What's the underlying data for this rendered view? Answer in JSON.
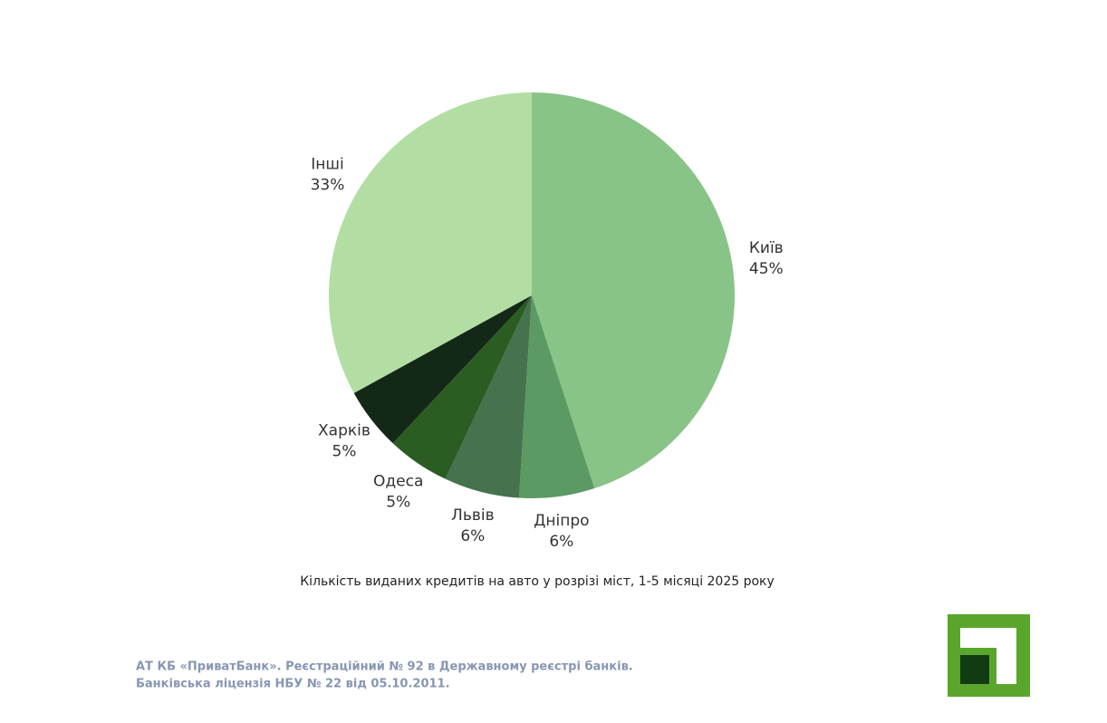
{
  "chart_data": {
    "type": "pie",
    "caption": "Кількість виданих кредитів на авто у розрізі міст,  1-5 місяці 2025 року",
    "categories": [
      "Київ",
      "Дніпро",
      "Львів",
      "Одеса",
      "Харків",
      "Інші"
    ],
    "values": [
      45,
      6,
      6,
      5,
      5,
      33
    ],
    "value_labels": [
      "45%",
      "6%",
      "6%",
      "5%",
      "5%",
      "33%"
    ],
    "colors": [
      "#88c487",
      "#5b9a63",
      "#46734e",
      "#2b5d23",
      "#142817",
      "#b2dea3"
    ]
  },
  "footer": {
    "lines": [
      "АТ КБ «ПриватБанк». Реєстраційний № 92 в Державному реєстрі банків.",
      "Банківська ліцензія НБУ № 22 від 05.10.2011."
    ]
  }
}
